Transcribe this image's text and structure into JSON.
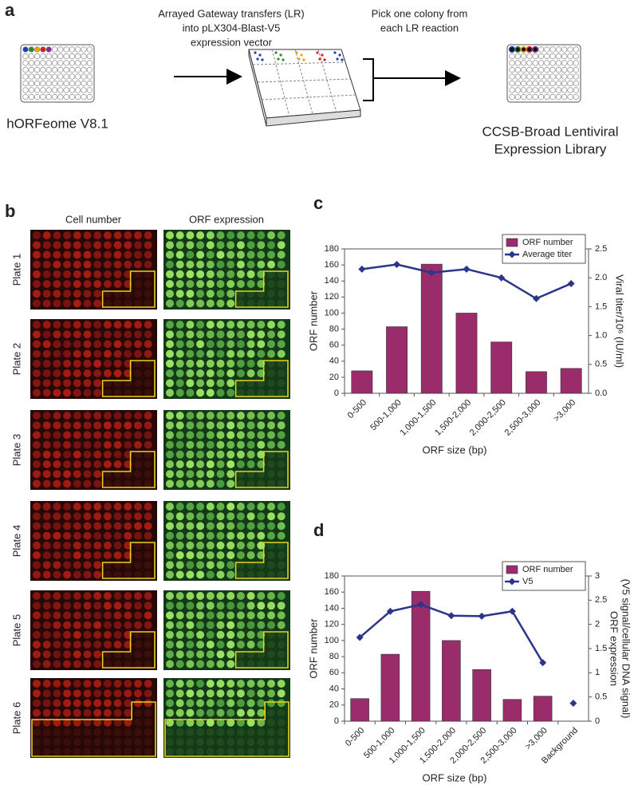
{
  "panel_a": {
    "letter": "a",
    "source_label": "hORFeome V8.1",
    "step1": [
      "Arrayed Gateway transfers (LR)",
      "into pLX304-Blast-V5",
      "expression vector"
    ],
    "step2": [
      "Pick one colony from",
      "each LR reaction"
    ],
    "result": [
      "CCSB-Broad Lentiviral",
      "Expression Library"
    ]
  },
  "panel_b": {
    "letter": "b",
    "columns": [
      "Cell number",
      "ORF expression"
    ],
    "plates": [
      "Plate 1",
      "Plate 2",
      "Plate 3",
      "Plate 4",
      "Plate 5",
      "Plate 6"
    ]
  },
  "chart_data": [
    {
      "type": "bar",
      "label": "c",
      "categories": [
        "0-500",
        "500-1,000",
        "1,000-1,500",
        "1,500-2,000",
        "2,000-2,500",
        "2,500-3,000",
        ">3,000"
      ],
      "series": [
        {
          "name": "ORF number",
          "color": "#9b2c6b",
          "values": [
            28,
            83,
            161,
            100,
            64,
            27,
            31
          ]
        },
        {
          "name": "Average titer",
          "color": "#2b3589",
          "axis": "y2",
          "values": [
            2.15,
            2.23,
            2.09,
            2.15,
            2.0,
            1.64,
            1.9
          ]
        }
      ],
      "x_label": "ORF size (bp)",
      "y_label": "ORF number",
      "y2_label": [
        "Viral titer/10⁶ (IU/ml)"
      ],
      "ylim": [
        0,
        180
      ],
      "yticks": [
        0,
        20,
        40,
        60,
        80,
        100,
        120,
        140,
        160,
        180
      ],
      "y2lim": [
        0,
        2.5
      ],
      "y2ticks": [
        {
          "value": 0,
          "label": "0.0"
        },
        0.5,
        {
          "value": 1,
          "label": "1.0"
        },
        1.5,
        {
          "value": 2,
          "label": "2.0"
        },
        2.5
      ],
      "legend": "upper-right"
    },
    {
      "type": "bar",
      "label": "d",
      "categories": [
        "0-500",
        "500-1,000",
        "1,000-1,500",
        "1,500-2,000",
        "2,000-2,500",
        "2,500-3,000",
        ">3,000",
        "Background"
      ],
      "series": [
        {
          "name": "ORF number",
          "color": "#9b2c6b",
          "values": [
            28,
            83,
            161,
            100,
            64,
            27,
            31,
            null
          ]
        },
        {
          "name": "V5",
          "color": "#2b3589",
          "axis": "y2",
          "values": [
            1.73,
            2.27,
            2.41,
            2.18,
            2.17,
            2.27,
            1.21,
            null
          ]
        },
        {
          "color": "#2b3589",
          "axis": "y2",
          "line": false,
          "values": [
            null,
            null,
            null,
            null,
            null,
            null,
            null,
            0.37
          ]
        }
      ],
      "x_label": "ORF size (bp)",
      "y_label": "ORF number",
      "y2_label": [
        "ORF expression",
        "(V5 signal/cellular DNA signal)"
      ],
      "ylim": [
        0,
        180
      ],
      "yticks": [
        0,
        20,
        40,
        60,
        80,
        100,
        120,
        140,
        160,
        180
      ],
      "y2lim": [
        0,
        3
      ],
      "y2ticks": [
        0,
        0.5,
        1,
        1.5,
        2,
        2.5,
        3
      ],
      "legend": "upper-right"
    }
  ]
}
